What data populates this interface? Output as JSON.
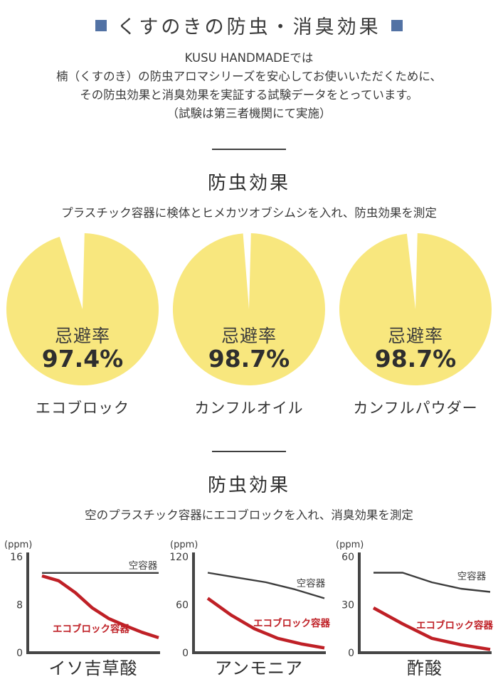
{
  "colors": {
    "accent_blue": "#5272a4",
    "pie_yellow": "#f8e77e",
    "line_red": "#bf2026",
    "line_gray": "#3d3d3d",
    "axis_gray": "#454545",
    "text_dark": "#333333"
  },
  "header": {
    "title": "くすのきの防虫・消臭効果"
  },
  "intro": {
    "lines": [
      "KUSU HANDMADEでは",
      "楠（くすのき）の防虫アロマシリーズを安心してお使いいただくために、",
      "その防虫効果と消臭効果を実証する試験データをとっています。",
      "（試験は第三者機関にて実施）"
    ]
  },
  "sections": [
    {
      "heading": "防虫効果",
      "subtitle": "プラスチック容器に検体とヒメカツオブシムシを入れ、防虫効果を測定"
    },
    {
      "heading": "防虫効果",
      "subtitle": "空のプラスチック容器にエコブロックを入れ、消臭効果を測定"
    }
  ],
  "chart_data": [
    {
      "type": "pie",
      "title": "エコブロック",
      "center_label": "忌避率",
      "value": 97.4,
      "value_text": "97.4%",
      "slice_color": "#f8e77e",
      "gap_deg": 19,
      "gap_center_deg": -8
    },
    {
      "type": "pie",
      "title": "カンフルオイル",
      "center_label": "忌避率",
      "value": 98.7,
      "value_text": "98.7%",
      "slice_color": "#f8e77e",
      "gap_deg": 6,
      "gap_center_deg": -1.5
    },
    {
      "type": "pie",
      "title": "カンフルパウダー",
      "center_label": "忌避率",
      "value": 98.7,
      "value_text": "98.7%",
      "slice_color": "#f8e77e",
      "gap_deg": 8,
      "gap_center_deg": -2.5
    },
    {
      "type": "line",
      "title": "イソ吉草酸",
      "ylabel": "(ppm)",
      "ylim": [
        0,
        16
      ],
      "yticks": [
        16,
        8,
        0
      ],
      "grid": false,
      "series": [
        {
          "name": "空容器",
          "color": "#3d3d3d",
          "width": 2.4,
          "bold": false,
          "values": [
            13.3,
            13.3
          ],
          "label_pos": [
            200,
            45
          ]
        },
        {
          "name": "エコブロック容器",
          "color": "#bf2026",
          "width": 4.5,
          "bold": true,
          "values": [
            12.8,
            12,
            10,
            7.5,
            5.7,
            4.5,
            3.4,
            2.5
          ],
          "label_pos": [
            127,
            134
          ]
        }
      ]
    },
    {
      "type": "line",
      "title": "アンモニア",
      "ylabel": "(ppm)",
      "ylim": [
        0,
        120
      ],
      "yticks": [
        120,
        60,
        0
      ],
      "grid": false,
      "series": [
        {
          "name": "空容器",
          "color": "#3d3d3d",
          "width": 2.4,
          "bold": false,
          "values": [
            100,
            94,
            88,
            79,
            68
          ],
          "label_pos": [
            203,
            70
          ]
        },
        {
          "name": "エコブロック容器",
          "color": "#bf2026",
          "width": 4.5,
          "bold": true,
          "values": [
            68,
            47,
            30,
            18,
            11,
            6
          ],
          "label_pos": [
            176,
            126
          ]
        }
      ]
    },
    {
      "type": "line",
      "title": "酢酸",
      "ylabel": "(ppm)",
      "ylim": [
        0,
        60
      ],
      "yticks": [
        60,
        30,
        0
      ],
      "grid": false,
      "series": [
        {
          "name": "空容器",
          "color": "#3d3d3d",
          "width": 2.4,
          "bold": false,
          "values": [
            50,
            50,
            44,
            40,
            38
          ],
          "label_pos": [
            196,
            60
          ]
        },
        {
          "name": "エコブロック容器",
          "color": "#bf2026",
          "width": 4.5,
          "bold": true,
          "values": [
            28,
            18,
            9,
            5,
            2
          ],
          "label_pos": [
            172,
            129
          ]
        }
      ]
    }
  ]
}
